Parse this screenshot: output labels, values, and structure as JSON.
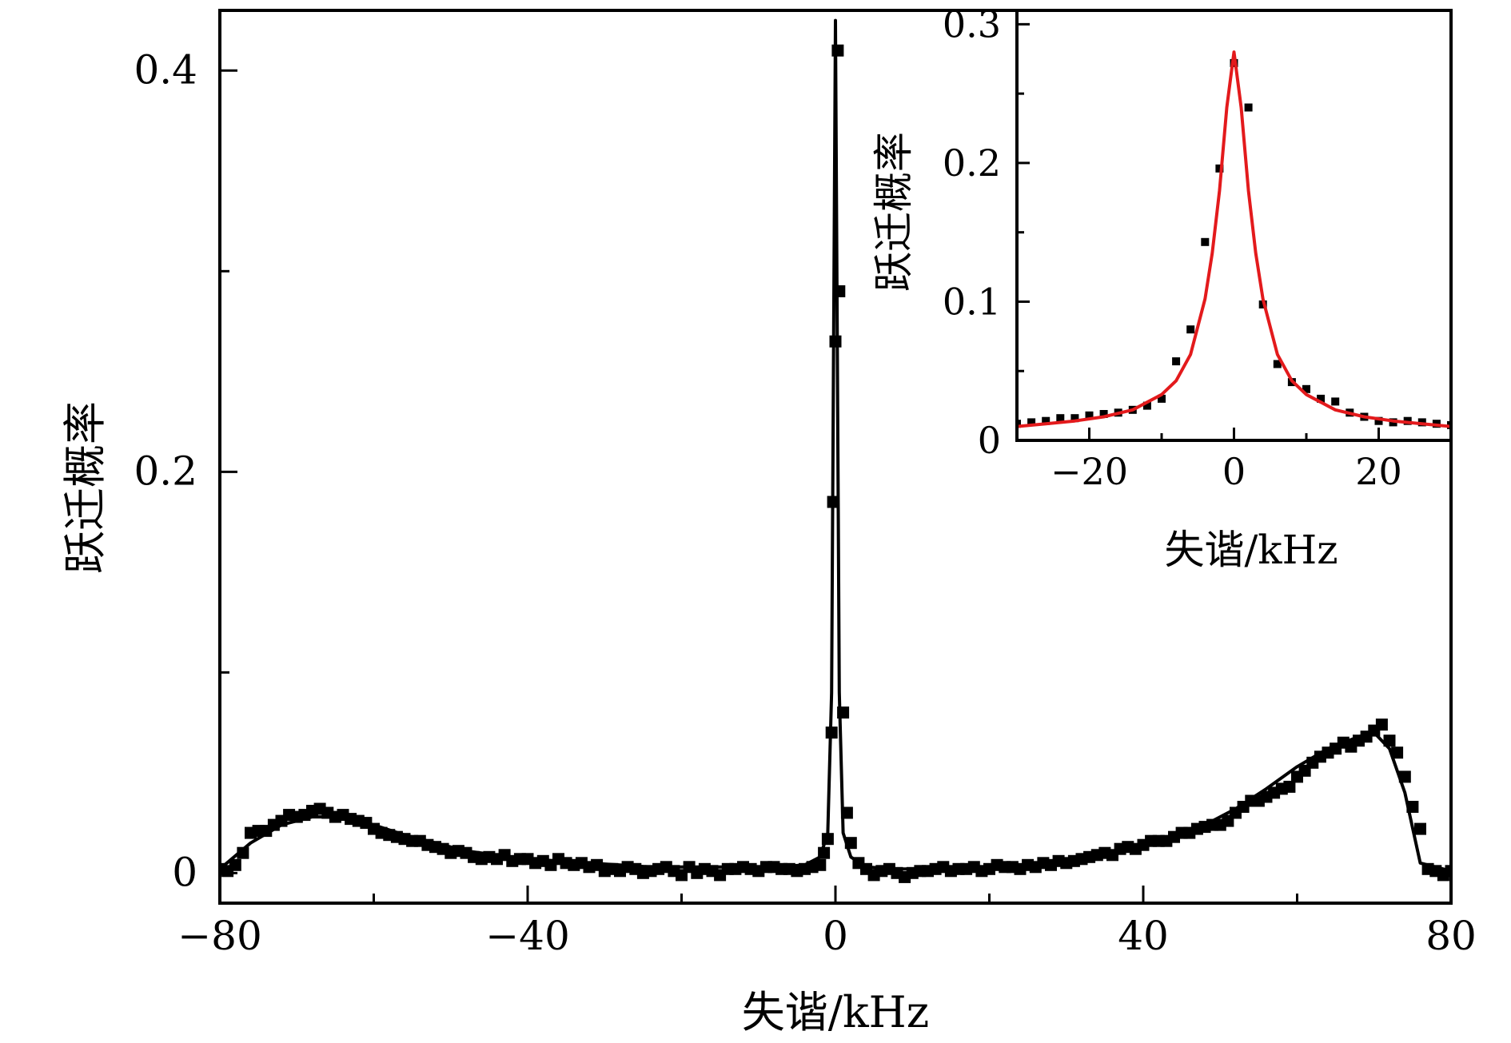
{
  "chart_data": [
    {
      "panel": "main",
      "type": "scatter",
      "xlabel": "失谐/kHz",
      "ylabel": "跃迁概率",
      "xlim": [
        -80,
        80
      ],
      "ylim": [
        -0.015,
        0.43
      ],
      "xticks": [
        -80,
        -40,
        0,
        40,
        80
      ],
      "xtick_labels": [
        "−80",
        "−40",
        "0",
        "40",
        "80"
      ],
      "yticks": [
        0,
        0.2,
        0.4
      ],
      "ytick_labels": [
        "0",
        "0.2",
        "0.4"
      ],
      "grid": false,
      "series": [
        {
          "style": "black square markers",
          "color": "#000000",
          "x": [
            -80,
            -79,
            -78,
            -77,
            -76,
            -75,
            -74,
            -73,
            -72,
            -71,
            -70,
            -69,
            -68,
            -67,
            -66,
            -65,
            -64,
            -63,
            -62,
            -61,
            -60,
            -59,
            -58,
            -57,
            -56,
            -55,
            -54,
            -53,
            -52,
            -51,
            -50,
            -49,
            -48,
            -47,
            -46,
            -45,
            -44,
            -43,
            -42,
            -41,
            -40,
            -39,
            -38,
            -37,
            -36,
            -35,
            -34,
            -33,
            -32,
            -31,
            -30,
            -29,
            -28,
            -27,
            -26,
            -25,
            -24,
            -23,
            -22,
            -21,
            -20,
            -19,
            -18,
            -17,
            -16,
            -15,
            -14,
            -13,
            -12,
            -11,
            -10,
            -9,
            -8,
            -7,
            -6,
            -5,
            -4,
            -3,
            -2,
            -1.5,
            -1,
            -0.5,
            -0.3,
            0,
            0.3,
            0.5,
            1,
            1.5,
            2,
            3,
            4,
            5,
            6,
            7,
            8,
            9,
            10,
            11,
            12,
            13,
            14,
            15,
            16,
            17,
            18,
            19,
            20,
            21,
            22,
            23,
            24,
            25,
            26,
            27,
            28,
            29,
            30,
            31,
            32,
            33,
            34,
            35,
            36,
            37,
            38,
            39,
            40,
            41,
            42,
            43,
            44,
            45,
            46,
            47,
            48,
            49,
            50,
            51,
            52,
            53,
            54,
            55,
            56,
            57,
            58,
            59,
            60,
            61,
            62,
            63,
            64,
            65,
            66,
            67,
            68,
            69,
            70,
            71,
            72,
            73,
            74,
            75,
            76,
            77,
            78,
            79,
            80
          ],
          "y": [
            0.002,
            0.001,
            0.004,
            0.01,
            0.02,
            0.021,
            0.021,
            0.024,
            0.026,
            0.029,
            0.028,
            0.029,
            0.031,
            0.032,
            0.03,
            0.028,
            0.029,
            0.027,
            0.026,
            0.025,
            0.022,
            0.02,
            0.019,
            0.018,
            0.017,
            0.016,
            0.016,
            0.014,
            0.013,
            0.012,
            0.01,
            0.011,
            0.01,
            0.008,
            0.007,
            0.008,
            0.007,
            0.009,
            0.006,
            0.007,
            0.007,
            0.005,
            0.006,
            0.004,
            0.007,
            0.005,
            0.004,
            0.005,
            0.003,
            0.004,
            0.001,
            0.002,
            0.001,
            0.003,
            0.002,
            0.0,
            0.001,
            0.002,
            0.003,
            0.001,
            -0.001,
            0.003,
            0.0,
            0.002,
            0.001,
            -0.001,
            0.002,
            0.002,
            0.003,
            0.002,
            0.001,
            0.003,
            0.003,
            0.002,
            0.002,
            0.001,
            0.002,
            0.003,
            0.004,
            0.01,
            0.017,
            0.07,
            0.185,
            0.265,
            0.41,
            0.29,
            0.08,
            0.03,
            0.015,
            0.005,
            0.002,
            -0.001,
            0.001,
            0.002,
            0.0,
            -0.002,
            0.0,
            0.001,
            0.001,
            0.002,
            0.003,
            0.001,
            0.002,
            0.002,
            0.003,
            0.001,
            0.002,
            0.004,
            0.003,
            0.003,
            0.002,
            0.004,
            0.003,
            0.005,
            0.004,
            0.006,
            0.005,
            0.006,
            0.007,
            0.008,
            0.009,
            0.01,
            0.009,
            0.012,
            0.013,
            0.012,
            0.014,
            0.016,
            0.016,
            0.016,
            0.018,
            0.02,
            0.02,
            0.022,
            0.023,
            0.024,
            0.024,
            0.026,
            0.03,
            0.033,
            0.036,
            0.036,
            0.038,
            0.04,
            0.042,
            0.043,
            0.048,
            0.051,
            0.055,
            0.058,
            0.06,
            0.062,
            0.065,
            0.063,
            0.066,
            0.068,
            0.071,
            0.074,
            0.066,
            0.06,
            0.048,
            0.033,
            0.022,
            0.002,
            0.001,
            -0.001,
            0.001
          ]
        },
        {
          "style": "line fit",
          "color": "#000000",
          "x": [
            -80,
            -76,
            -72,
            -68,
            -64,
            -60,
            -56,
            -52,
            -48,
            -44,
            -40,
            -36,
            -32,
            -28,
            -24,
            -20,
            -16,
            -12,
            -8,
            -4,
            -2,
            -1,
            -0.5,
            0,
            0.5,
            1,
            2,
            4,
            8,
            12,
            16,
            20,
            24,
            28,
            32,
            36,
            40,
            44,
            48,
            52,
            56,
            60,
            64,
            68,
            70,
            72,
            74,
            76,
            80
          ],
          "y": [
            0.002,
            0.015,
            0.024,
            0.028,
            0.028,
            0.024,
            0.019,
            0.015,
            0.011,
            0.009,
            0.007,
            0.006,
            0.005,
            0.004,
            0.003,
            0.003,
            0.003,
            0.003,
            0.003,
            0.004,
            0.008,
            0.02,
            0.09,
            0.425,
            0.09,
            0.02,
            0.008,
            0.003,
            0.002,
            0.002,
            0.002,
            0.003,
            0.004,
            0.005,
            0.007,
            0.01,
            0.014,
            0.018,
            0.024,
            0.032,
            0.042,
            0.053,
            0.062,
            0.068,
            0.07,
            0.062,
            0.04,
            0.005,
            0.001
          ]
        }
      ]
    },
    {
      "panel": "inset",
      "type": "scatter",
      "xlabel": "失谐/kHz",
      "ylabel": "跃迁概率",
      "xlim": [
        -30,
        30
      ],
      "ylim": [
        0,
        0.31
      ],
      "xticks": [
        -20,
        0,
        20
      ],
      "xtick_labels": [
        "−20",
        "0",
        "20"
      ],
      "yticks": [
        0,
        0.1,
        0.2,
        0.3
      ],
      "ytick_labels": [
        "0",
        "0.1",
        "0.2",
        "0.3"
      ],
      "grid": false,
      "series": [
        {
          "style": "black square markers",
          "color": "#000000",
          "x": [
            -30,
            -28,
            -26,
            -24,
            -22,
            -20,
            -18,
            -16,
            -14,
            -12,
            -10,
            -8,
            -6,
            -4,
            -2,
            0,
            2,
            4,
            6,
            8,
            10,
            12,
            14,
            16,
            18,
            20,
            22,
            24,
            26,
            28,
            30
          ],
          "y": [
            0.012,
            0.013,
            0.014,
            0.016,
            0.016,
            0.018,
            0.019,
            0.02,
            0.022,
            0.025,
            0.03,
            0.057,
            0.08,
            0.143,
            0.196,
            0.272,
            0.24,
            0.098,
            0.055,
            0.042,
            0.037,
            0.03,
            0.028,
            0.02,
            0.017,
            0.014,
            0.013,
            0.014,
            0.013,
            0.012,
            0.011
          ]
        },
        {
          "style": "line fit",
          "color": "#e31a1c",
          "x": [
            -30,
            -26,
            -22,
            -18,
            -14,
            -10,
            -8,
            -6,
            -4,
            -3,
            -2,
            -1,
            0,
            1,
            2,
            3,
            4,
            6,
            8,
            10,
            14,
            18,
            22,
            26,
            30
          ],
          "y": [
            0.01,
            0.012,
            0.014,
            0.017,
            0.022,
            0.033,
            0.043,
            0.062,
            0.102,
            0.135,
            0.18,
            0.24,
            0.28,
            0.24,
            0.18,
            0.135,
            0.102,
            0.062,
            0.043,
            0.033,
            0.022,
            0.017,
            0.014,
            0.012,
            0.01
          ]
        }
      ]
    }
  ]
}
